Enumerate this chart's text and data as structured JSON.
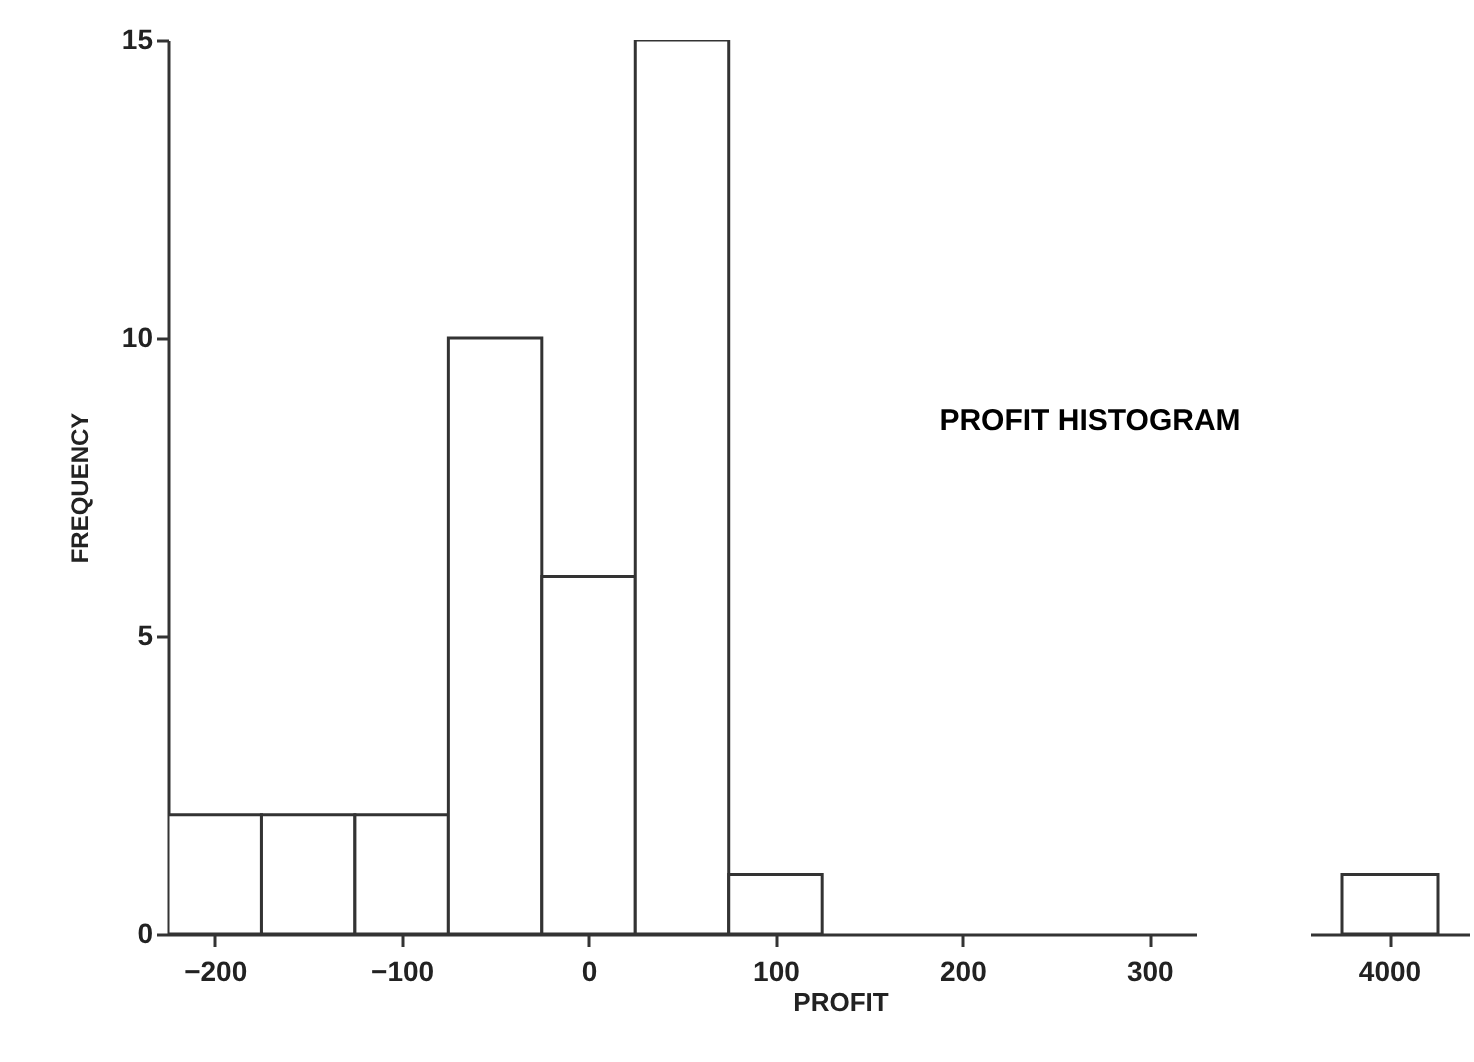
{
  "chart_data": [
    {
      "type": "histogram",
      "title": "PROFIT HISTOGRAM",
      "xlabel": "PROFIT",
      "ylabel": "FREQUENCY",
      "bins": [
        -225,
        -175,
        -125,
        -75,
        -25,
        25,
        75,
        125
      ],
      "values": [
        2,
        2,
        2,
        10,
        6,
        15,
        1
      ],
      "xlim": [
        -225,
        325
      ],
      "xticks": [
        -200,
        -100,
        0,
        100,
        200,
        300
      ],
      "ylim": [
        0,
        15
      ],
      "yticks": [
        0,
        5,
        10,
        15
      ]
    },
    {
      "type": "bar",
      "categories": [
        "4000"
      ],
      "values": [
        1
      ],
      "ylim": [
        0,
        15
      ],
      "yticks": [
        0,
        5,
        10,
        15
      ],
      "tick_labels": "x"
    }
  ]
}
